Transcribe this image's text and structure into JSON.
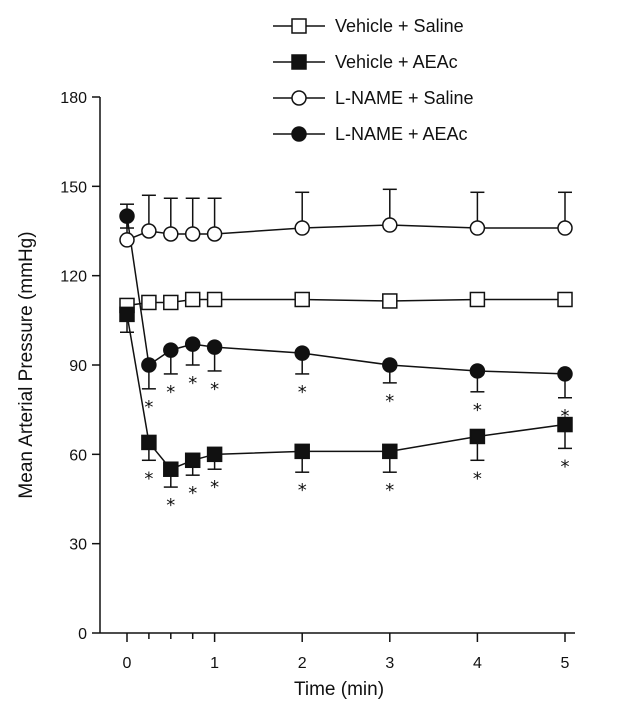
{
  "chart_data": {
    "type": "line",
    "xlabel": "Time (min)",
    "ylabel": "Mean Arterial Pressure (mmHg)",
    "xlim": [
      -0.25,
      5.1
    ],
    "ylim": [
      0,
      180
    ],
    "x_ticks": [
      0,
      1,
      2,
      3,
      4,
      5
    ],
    "y_ticks": [
      0,
      30,
      60,
      90,
      120,
      150,
      180
    ],
    "x_minor_ticks": [
      0.25,
      0.5,
      0.75
    ],
    "grid": false,
    "legend_position": "top-right",
    "significance_marker": "*",
    "series": [
      {
        "name": "Vehicle + Saline",
        "marker": "open-square",
        "x": [
          0,
          0.25,
          0.5,
          0.75,
          1,
          2,
          3,
          4,
          5
        ],
        "y": [
          110,
          111,
          111,
          112,
          112,
          112,
          111.5,
          112,
          112
        ],
        "error": [
          0,
          0,
          0,
          0,
          0,
          0,
          0,
          0,
          0
        ],
        "error_dir": "none",
        "significant": [
          false,
          false,
          false,
          false,
          false,
          false,
          false,
          false,
          false
        ]
      },
      {
        "name": "Vehicle + AEAc",
        "marker": "filled-square",
        "x": [
          0,
          0.25,
          0.5,
          0.75,
          1,
          2,
          3,
          4,
          5
        ],
        "y": [
          107,
          64,
          55,
          58,
          60,
          61,
          61,
          66,
          70
        ],
        "error": [
          6,
          6,
          6,
          5,
          5,
          7,
          7,
          8,
          8
        ],
        "error_dir": "down",
        "significant": [
          false,
          true,
          true,
          true,
          true,
          true,
          true,
          true,
          true
        ]
      },
      {
        "name": "L-NAME + Saline",
        "marker": "open-circle",
        "x": [
          0,
          0.25,
          0.5,
          0.75,
          1,
          2,
          3,
          4,
          5
        ],
        "y": [
          132,
          135,
          134,
          134,
          134,
          136,
          137,
          136,
          136
        ],
        "error": [
          12,
          12,
          12,
          12,
          12,
          12,
          12,
          12,
          12
        ],
        "error_dir": "up",
        "significant": [
          false,
          false,
          false,
          false,
          false,
          false,
          false,
          false,
          false
        ]
      },
      {
        "name": "L-NAME + AEAc",
        "marker": "filled-circle",
        "x": [
          0,
          0.25,
          0.5,
          0.75,
          1,
          2,
          3,
          4,
          5
        ],
        "y": [
          140,
          90,
          95,
          97,
          96,
          94,
          90,
          88,
          87
        ],
        "error": [
          4,
          8,
          8,
          7,
          8,
          7,
          6,
          7,
          8
        ],
        "error_dir": "down",
        "significant": [
          false,
          true,
          true,
          true,
          true,
          true,
          true,
          true,
          true
        ]
      }
    ]
  }
}
